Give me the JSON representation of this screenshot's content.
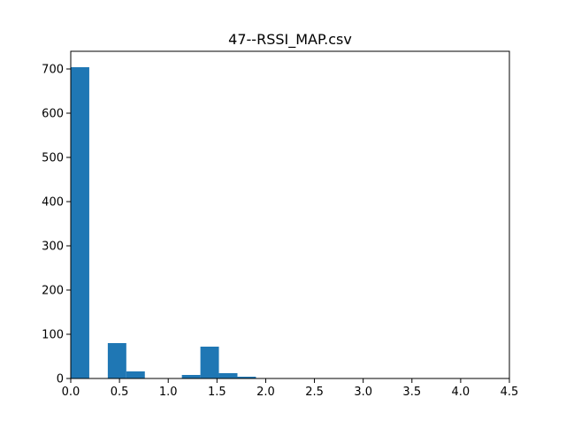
{
  "chart_data": {
    "type": "bar",
    "title": "47--RSSI_MAP.csv",
    "xlabel": "",
    "ylabel": "",
    "xlim": [
      0,
      4.5
    ],
    "ylim": [
      0,
      740
    ],
    "bar_color": "#1f77b4",
    "bins": [
      {
        "x0": 0.0,
        "x1": 0.19,
        "value": 704
      },
      {
        "x0": 0.38,
        "x1": 0.57,
        "value": 80
      },
      {
        "x0": 0.57,
        "x1": 0.76,
        "value": 16
      },
      {
        "x0": 1.14,
        "x1": 1.33,
        "value": 8
      },
      {
        "x0": 1.33,
        "x1": 1.52,
        "value": 72
      },
      {
        "x0": 1.52,
        "x1": 1.71,
        "value": 12
      },
      {
        "x0": 1.71,
        "x1": 1.9,
        "value": 4
      },
      {
        "x0": 1.9,
        "x1": 2.09,
        "value": 1
      }
    ],
    "x_ticks": [
      {
        "value": 0.0,
        "label": "0.0"
      },
      {
        "value": 0.5,
        "label": "0.5"
      },
      {
        "value": 1.0,
        "label": "1.0"
      },
      {
        "value": 1.5,
        "label": "1.5"
      },
      {
        "value": 2.0,
        "label": "2.0"
      },
      {
        "value": 2.5,
        "label": "2.5"
      },
      {
        "value": 3.0,
        "label": "3.0"
      },
      {
        "value": 3.5,
        "label": "3.5"
      },
      {
        "value": 4.0,
        "label": "4.0"
      },
      {
        "value": 4.5,
        "label": "4.5"
      }
    ],
    "y_ticks": [
      {
        "value": 0,
        "label": "0"
      },
      {
        "value": 100,
        "label": "100"
      },
      {
        "value": 200,
        "label": "200"
      },
      {
        "value": 300,
        "label": "300"
      },
      {
        "value": 400,
        "label": "400"
      },
      {
        "value": 500,
        "label": "500"
      },
      {
        "value": 600,
        "label": "600"
      },
      {
        "value": 700,
        "label": "700"
      }
    ],
    "grid": false,
    "legend": "none"
  }
}
